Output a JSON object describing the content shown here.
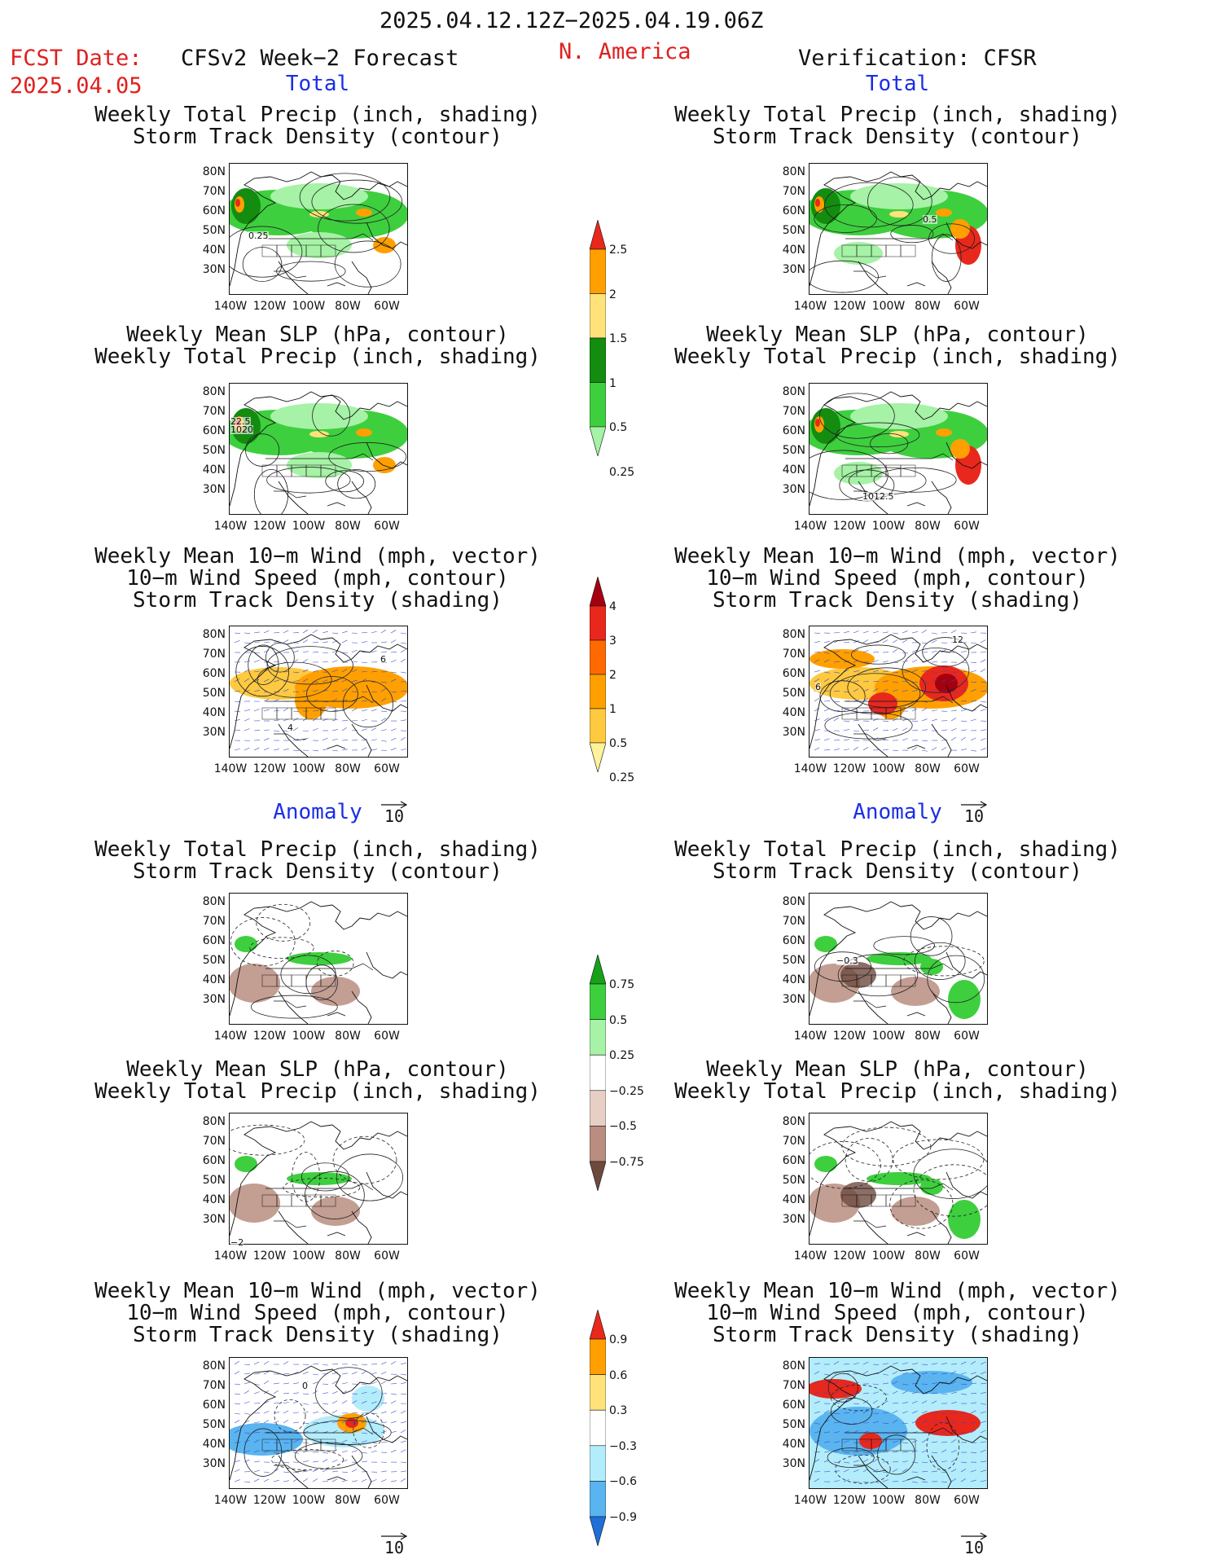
{
  "header": {
    "date_range": "2025.04.12.12Z−2025.04.19.06Z",
    "fcst_label": "FCST Date:",
    "fcst_date": "2025.04.05",
    "left_title": "CFSv2 Week−2 Forecast",
    "region": "N. America",
    "right_title": "Verification: CFSR"
  },
  "sections": {
    "total": "Total",
    "anomaly": "Anomaly"
  },
  "panel_titles": {
    "precip_storm": [
      "Weekly Total Precip (inch, shading)",
      "Storm Track Density (contour)"
    ],
    "slp_precip": [
      "Weekly Mean SLP (hPa, contour)",
      "Weekly Total Precip (inch, shading)"
    ],
    "wind_storm": [
      "Weekly Mean 10−m Wind (mph, vector)",
      "10−m Wind Speed (mph, contour)",
      "Storm Track Density (shading)"
    ]
  },
  "axes": {
    "lat_ticks": [
      "80N",
      "70N",
      "60N",
      "50N",
      "40N",
      "30N"
    ],
    "lon_ticks": [
      "140W",
      "120W",
      "100W",
      "80W",
      "60W"
    ]
  },
  "vector_ref": "10",
  "colorbars": {
    "precip_total": {
      "labels": [
        "2.5",
        "2",
        "1.5",
        "1",
        "0.5",
        "0.25"
      ],
      "colors": [
        "#e8281c",
        "#ffa000",
        "#ffe27a",
        "#138c10",
        "#3ecf3e",
        "#a6f2a6"
      ]
    },
    "storm_total": {
      "labels": [
        "4",
        "3",
        "2",
        "1",
        "0.5",
        "0.25"
      ],
      "colors": [
        "#a5000f",
        "#e8281c",
        "#ff6a00",
        "#ffa000",
        "#ffc940",
        "#fff29a"
      ]
    },
    "precip_anom": {
      "labels": [
        "0.75",
        "0.5",
        "0.25",
        "−0.25",
        "−0.5",
        "−0.75"
      ],
      "colors": [
        "#18a018",
        "#3ecf3e",
        "#a6f2a6",
        "#ffffff",
        "#e8cfc5",
        "#b98d7f",
        "#6e4a3e"
      ]
    },
    "storm_anom": {
      "labels": [
        "0.9",
        "0.6",
        "0.3",
        "−0.3",
        "−0.6",
        "−0.9"
      ],
      "colors": [
        "#e8281c",
        "#ffa000",
        "#ffe27a",
        "#ffffff",
        "#b3ecfb",
        "#5ab4f0",
        "#1f6fd8"
      ]
    }
  },
  "map_labels": {
    "fc_precip_storm": "0.25",
    "fc_slp_a": "22.5",
    "fc_slp_b": "1020",
    "ob_precip_storm": "0.5",
    "ob_slp": "1012.5",
    "fc_wind_a": "4",
    "fc_wind_b": "6",
    "ob_wind_a": "6",
    "ob_wind_b": "12",
    "ob_anom_precip": "−0.3",
    "fc_anom_slp": "−2",
    "fc_anom_wind": "0"
  },
  "colors": {
    "title_red": "#e02020",
    "section_blue": "#1a2ee8"
  }
}
